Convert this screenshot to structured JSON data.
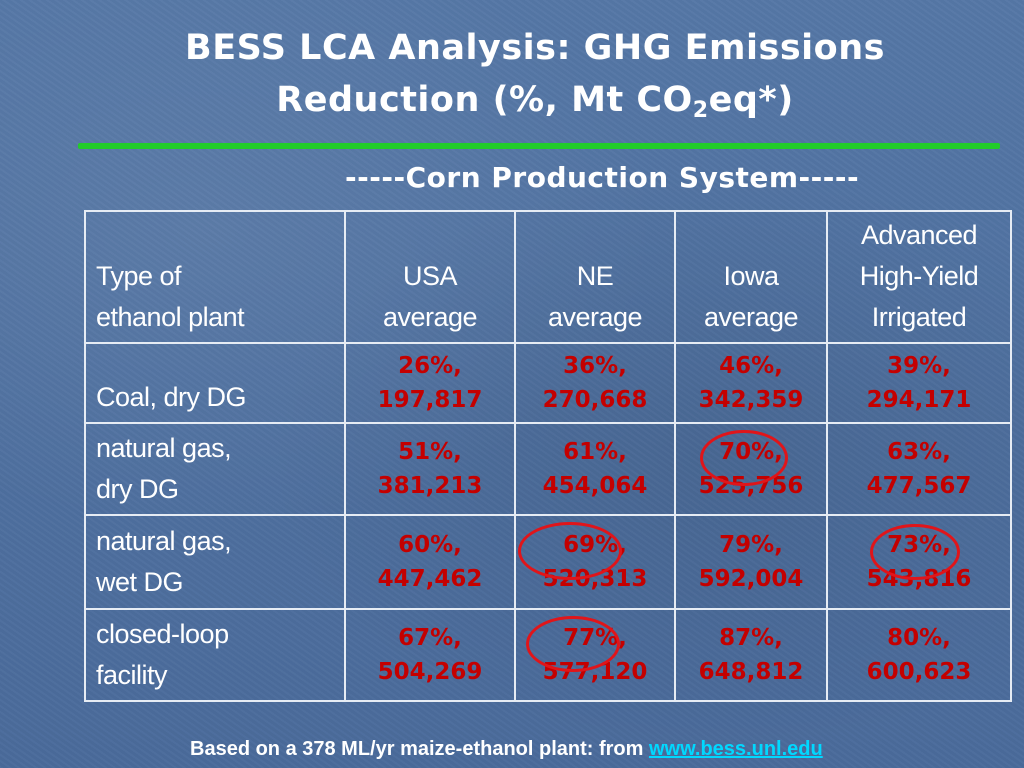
{
  "slide": {
    "title_line1": "BESS LCA Analysis: GHG Emissions",
    "title_line2_pre": "Reduction (%, Mt CO",
    "title_sub": "2",
    "title_line2_post": "eq*)",
    "subtitle": "-----Corn Production System-----",
    "footer_text": "Based on a 378 ML/yr maize-ethanol plant: from ",
    "footer_link": "www.bess.unl.edu",
    "colors": {
      "background": "#4f70a0",
      "rule": "#22cc2a",
      "value_text": "#c40000",
      "circle": "#e0151a",
      "link": "#00d8ff"
    }
  },
  "table": {
    "header": {
      "col0": [
        "Type of",
        "ethanol plant"
      ],
      "col1": [
        "USA",
        "average"
      ],
      "col2": [
        "NE",
        "average"
      ],
      "col3": [
        "Iowa",
        "average"
      ],
      "col4": [
        "Advanced",
        "High-Yield",
        "Irrigated"
      ]
    },
    "rows": [
      {
        "label": [
          "Coal, dry DG"
        ],
        "cells": [
          {
            "pct": "26%,",
            "val": "197,817",
            "circled": false
          },
          {
            "pct": "36%,",
            "val": "270,668",
            "circled": false
          },
          {
            "pct": "46%,",
            "val": "342,359",
            "circled": false
          },
          {
            "pct": "39%,",
            "val": "294,171",
            "circled": false
          }
        ]
      },
      {
        "label": [
          "natural gas,",
          "dry DG"
        ],
        "cells": [
          {
            "pct": "51%,",
            "val": "381,213",
            "circled": false
          },
          {
            "pct": "61%,",
            "val": "454,064",
            "circled": false
          },
          {
            "pct": "70%,",
            "val": "525,756",
            "circled": true
          },
          {
            "pct": "63%,",
            "val": "477,567",
            "circled": false
          }
        ]
      },
      {
        "label": [
          "natural gas,",
          "wet DG"
        ],
        "cells": [
          {
            "pct": "60%,",
            "val": "447,462",
            "circled": false
          },
          {
            "pct": "69%,",
            "val": "520,313",
            "circled": true
          },
          {
            "pct": "79%,",
            "val": "592,004",
            "circled": false
          },
          {
            "pct": "73%,",
            "val": "543,816",
            "circled": true
          }
        ]
      },
      {
        "label": [
          "closed-loop",
          "facility"
        ],
        "cells": [
          {
            "pct": "67%,",
            "val": "504,269",
            "circled": false
          },
          {
            "pct": "77%,",
            "val": "577,120",
            "circled": true
          },
          {
            "pct": "87%,",
            "val": "648,812",
            "circled": false
          },
          {
            "pct": "80%,",
            "val": "600,623",
            "circled": false
          }
        ]
      }
    ]
  }
}
